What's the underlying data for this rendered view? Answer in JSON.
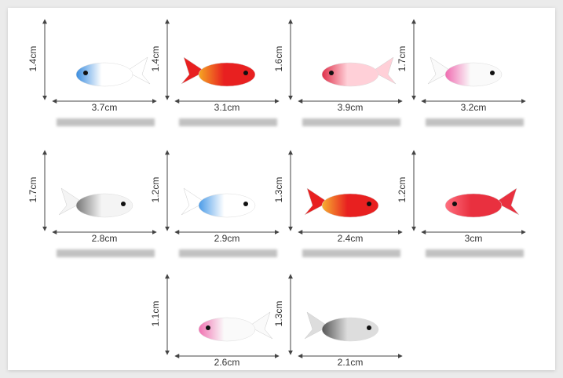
{
  "items": [
    {
      "height": "1.4cm",
      "width": "3.7cm"
    },
    {
      "height": "1.4cm",
      "width": "3.1cm"
    },
    {
      "height": "1.6cm",
      "width": "3.9cm"
    },
    {
      "height": "1.7cm",
      "width": "3.2cm"
    },
    {
      "height": "1.7cm",
      "width": "2.8cm"
    },
    {
      "height": "1.2cm",
      "width": "2.9cm"
    },
    {
      "height": "1.3cm",
      "width": "2.4cm"
    },
    {
      "height": "1.2cm",
      "width": "3cm"
    },
    {
      "height": "1.1cm",
      "width": "2.6cm"
    },
    {
      "height": "1.3cm",
      "width": "2.1cm"
    }
  ]
}
